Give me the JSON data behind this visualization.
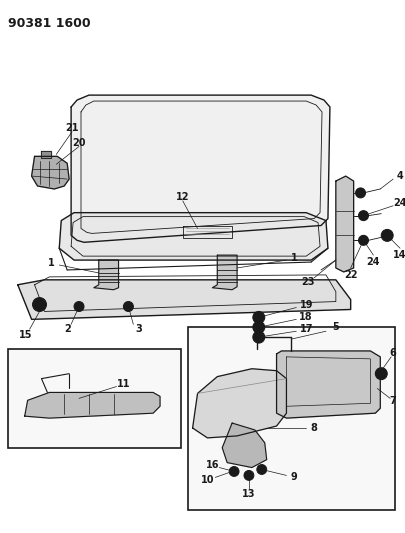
{
  "title": "90381 1600",
  "bg": "#ffffff",
  "lc": "#1a1a1a",
  "figsize": [
    4.06,
    5.33
  ],
  "dpi": 100
}
